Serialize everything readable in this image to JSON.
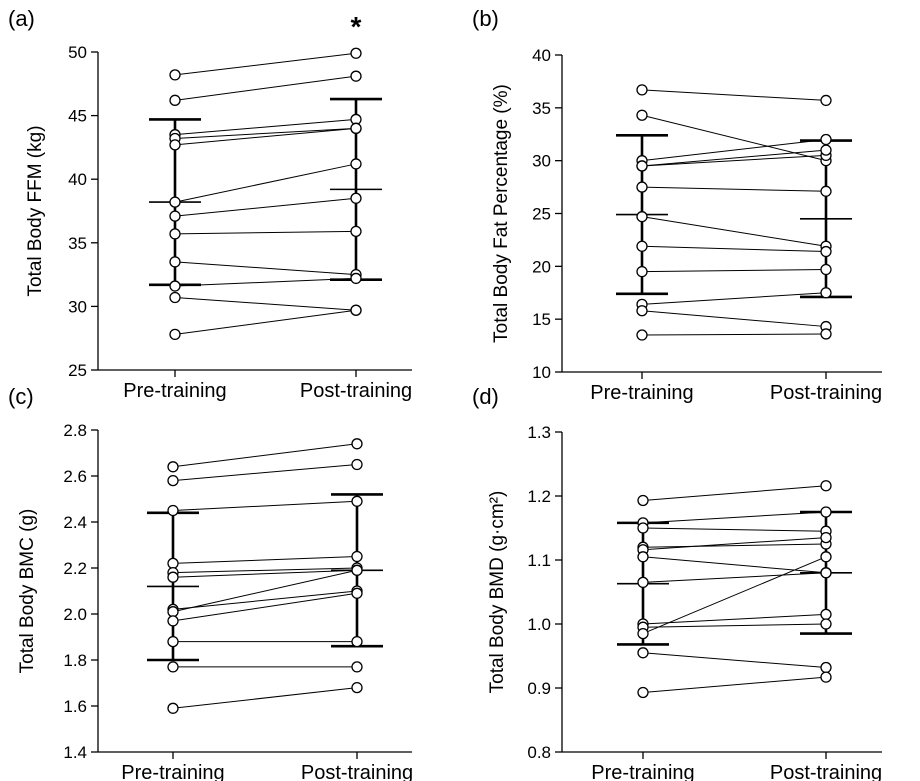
{
  "chart_data": [
    {
      "panel_label": "(a)",
      "type": "scatter",
      "categories": [
        "Pre-training",
        "Post-training"
      ],
      "ylabel": "Total Body FFM (kg)",
      "ylim": [
        25,
        50
      ],
      "yticks": [
        25,
        30,
        35,
        40,
        45,
        50
      ],
      "tick_labels": [
        "25",
        "30",
        "35",
        "40",
        "45",
        "50"
      ],
      "annotation": "*",
      "mean": [
        38.2,
        39.2
      ],
      "sd": [
        6.5,
        7.1
      ],
      "pairs": [
        [
          48.2,
          49.9
        ],
        [
          46.2,
          48.1
        ],
        [
          43.5,
          44.7
        ],
        [
          43.2,
          44.0
        ],
        [
          42.7,
          44.0
        ],
        [
          38.2,
          41.2
        ],
        [
          37.1,
          38.5
        ],
        [
          35.7,
          35.9
        ],
        [
          33.5,
          32.5
        ],
        [
          31.6,
          32.2
        ],
        [
          30.7,
          29.7
        ],
        [
          27.8,
          29.7
        ]
      ]
    },
    {
      "panel_label": "(b)",
      "type": "scatter",
      "categories": [
        "Pre-training",
        "Post-training"
      ],
      "ylabel": "Total Body Fat Percentage (%)",
      "ylim": [
        10,
        40
      ],
      "yticks": [
        10,
        15,
        20,
        25,
        30,
        35,
        40
      ],
      "tick_labels": [
        "10",
        "15",
        "20",
        "25",
        "30",
        "35",
        "40"
      ],
      "mean": [
        24.9,
        24.5
      ],
      "sd": [
        7.5,
        7.4
      ],
      "pairs": [
        [
          36.7,
          35.7
        ],
        [
          34.3,
          30.0
        ],
        [
          30.0,
          32.0
        ],
        [
          29.5,
          30.5
        ],
        [
          29.5,
          31.0
        ],
        [
          27.5,
          27.1
        ],
        [
          24.7,
          21.9
        ],
        [
          21.9,
          21.4
        ],
        [
          19.5,
          19.7
        ],
        [
          16.4,
          17.5
        ],
        [
          15.8,
          14.3
        ],
        [
          13.5,
          13.6
        ]
      ]
    },
    {
      "panel_label": "(c)",
      "type": "scatter",
      "categories": [
        "Pre-training",
        "Post-training"
      ],
      "ylabel": "Total Body BMC (g)",
      "ylim": [
        1.4,
        2.8
      ],
      "yticks": [
        1.4,
        1.6,
        1.8,
        2.0,
        2.2,
        2.4,
        2.6,
        2.8
      ],
      "tick_labels": [
        "1.4",
        "1.6",
        "1.8",
        "2.0",
        "2.2",
        "2.4",
        "2.6",
        "2.8"
      ],
      "mean": [
        2.12,
        2.19
      ],
      "sd": [
        0.32,
        0.33
      ],
      "pairs": [
        [
          2.64,
          2.74
        ],
        [
          2.58,
          2.65
        ],
        [
          2.45,
          2.49
        ],
        [
          2.22,
          2.25
        ],
        [
          2.18,
          2.2
        ],
        [
          2.16,
          2.19
        ],
        [
          2.02,
          2.1
        ],
        [
          2.01,
          2.19
        ],
        [
          1.97,
          2.09
        ],
        [
          1.88,
          1.88
        ],
        [
          1.77,
          1.77
        ],
        [
          1.59,
          1.68
        ]
      ]
    },
    {
      "panel_label": "(d)",
      "type": "scatter",
      "categories": [
        "Pre-training",
        "Post-training"
      ],
      "ylabel": "Total Body BMD (g·cm²)",
      "ylim": [
        0.8,
        1.3
      ],
      "yticks": [
        0.8,
        0.9,
        1.0,
        1.1,
        1.2,
        1.3
      ],
      "tick_labels": [
        "0.8",
        "0.9",
        "1.0",
        "1.1",
        "1.2",
        "1.3"
      ],
      "mean": [
        1.063,
        1.08
      ],
      "sd": [
        0.095,
        0.095
      ],
      "pairs": [
        [
          1.193,
          1.216
        ],
        [
          1.158,
          1.175
        ],
        [
          1.15,
          1.145
        ],
        [
          1.12,
          1.125
        ],
        [
          1.116,
          1.135
        ],
        [
          1.105,
          1.08
        ],
        [
          1.065,
          1.08
        ],
        [
          1.0,
          1.015
        ],
        [
          0.995,
          1.0
        ],
        [
          0.985,
          1.105
        ],
        [
          0.955,
          0.932
        ],
        [
          0.893,
          0.917
        ]
      ]
    }
  ]
}
